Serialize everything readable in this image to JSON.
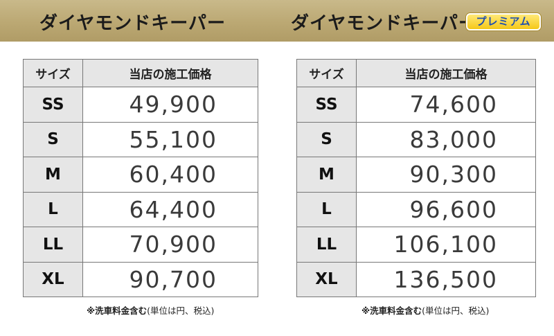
{
  "banner": {
    "left_title": "ダイヤモンドキーパー",
    "right_title": "ダイヤモンドキーパー",
    "premium_badge": "プレミアム"
  },
  "tables": [
    {
      "headers": {
        "size": "サイズ",
        "price": "当店の施工価格"
      },
      "rows": [
        {
          "size": "SS",
          "price": "49,900"
        },
        {
          "size": "S",
          "price": "55,100"
        },
        {
          "size": "M",
          "price": "60,400"
        },
        {
          "size": "L",
          "price": "64,400"
        },
        {
          "size": "LL",
          "price": "70,900"
        },
        {
          "size": "XL",
          "price": "90,700"
        }
      ],
      "note_bold": "※洗車料金含む",
      "note_rest": "(単位は円、税込)"
    },
    {
      "headers": {
        "size": "サイズ",
        "price": "当店の施工価格"
      },
      "rows": [
        {
          "size": "SS",
          "price": "74,600"
        },
        {
          "size": "S",
          "price": "83,000"
        },
        {
          "size": "M",
          "price": "90,300"
        },
        {
          "size": "L",
          "price": "96,600"
        },
        {
          "size": "LL",
          "price": "106,100"
        },
        {
          "size": "XL",
          "price": "136,500"
        }
      ],
      "note_bold": "※洗車料金含む",
      "note_rest": "(単位は円、税込)"
    }
  ],
  "colors": {
    "banner_gold": "#bba873",
    "badge_yellow": "#f5c818",
    "badge_text_blue": "#1f4fae",
    "header_gray": "#e6e6e6"
  }
}
